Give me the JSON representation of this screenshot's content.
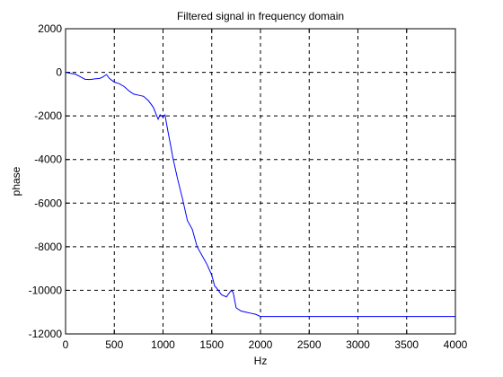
{
  "chart_data": {
    "type": "line",
    "title": "Filtered signal in frequency domain",
    "xlabel": "Hz",
    "ylabel": "phase",
    "xlim": [
      0,
      4000
    ],
    "ylim": [
      -12000,
      2000
    ],
    "xticks": [
      0,
      500,
      1000,
      1500,
      2000,
      2500,
      3000,
      3500,
      4000
    ],
    "yticks": [
      2000,
      0,
      -2000,
      -4000,
      -6000,
      -8000,
      -10000,
      -12000
    ],
    "grid": true,
    "line_color": "#0000ff",
    "series": [
      {
        "x": [
          0,
          50,
          100,
          150,
          200,
          250,
          300,
          350,
          380,
          420,
          450,
          500,
          550,
          600,
          650,
          700,
          750,
          800,
          850,
          900,
          950,
          970,
          1000,
          1020,
          1050,
          1080,
          1100,
          1150,
          1200,
          1250,
          1300,
          1350,
          1400,
          1450,
          1500,
          1530,
          1550,
          1600,
          1650,
          1700,
          1720,
          1750,
          1800,
          1850,
          1900,
          1950,
          2000,
          2500,
          3000,
          3500,
          4000
        ],
        "y": [
          0,
          -50,
          -80,
          -200,
          -320,
          -330,
          -300,
          -280,
          -220,
          -100,
          -280,
          -450,
          -520,
          -650,
          -850,
          -1000,
          -1050,
          -1100,
          -1300,
          -1600,
          -2150,
          -1950,
          -2050,
          -1950,
          -2700,
          -3400,
          -3900,
          -4900,
          -5800,
          -6800,
          -7200,
          -8000,
          -8400,
          -8800,
          -9300,
          -9800,
          -9900,
          -10200,
          -10300,
          -10000,
          -10100,
          -10800,
          -10950,
          -11000,
          -11050,
          -11100,
          -11200,
          -11200,
          -11200,
          -11200,
          -11200
        ]
      }
    ]
  }
}
